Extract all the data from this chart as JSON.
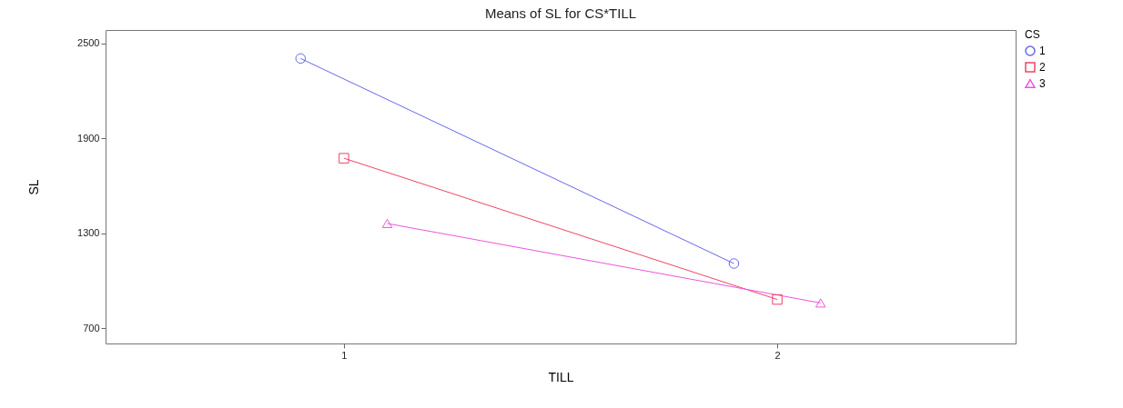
{
  "chart_data": {
    "type": "line",
    "title": "Means of SL for CS*TILL",
    "xlabel": "TILL",
    "ylabel": "SL",
    "legend_title": "CS",
    "xlim": [
      0.45,
      2.55
    ],
    "xticks": [
      1,
      2
    ],
    "ylim": [
      605,
      2585
    ],
    "yticks": [
      700,
      1300,
      1900,
      2500
    ],
    "series": [
      {
        "name": "1",
        "color": "#6666ee",
        "marker": "circle",
        "x": [
          0.9,
          1.9
        ],
        "values": [
          2405,
          1110
        ]
      },
      {
        "name": "2",
        "color": "#ee4466",
        "marker": "square",
        "x": [
          1,
          2
        ],
        "values": [
          1775,
          883
        ]
      },
      {
        "name": "3",
        "color": "#ee55dd",
        "marker": "triangle",
        "x": [
          1.1,
          2.1
        ],
        "values": [
          1363,
          861
        ]
      }
    ],
    "grid": false,
    "legend": "right"
  }
}
